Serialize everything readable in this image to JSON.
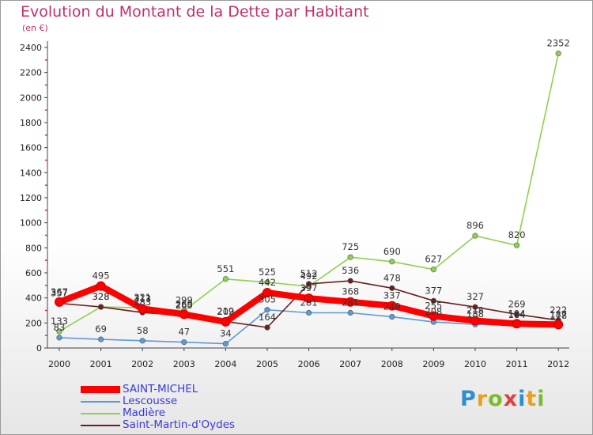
{
  "header": {
    "title": "Evolution du Montant de la Dette par Habitant",
    "unit": "(en €)"
  },
  "logo": {
    "letters": [
      "P",
      "r",
      "o",
      "x",
      "i",
      "t",
      "i"
    ],
    "colors": [
      "#2e8fd0",
      "#e8a020",
      "#7cbc2c",
      "#e04040",
      "#2e8fd0",
      "#e8a020",
      "#7cbc2c"
    ]
  },
  "chart_data": {
    "type": "line",
    "x": [
      "2000",
      "2001",
      "2002",
      "2003",
      "2004",
      "2005",
      "2006",
      "2007",
      "2008",
      "2009",
      "2010",
      "2011",
      "2012"
    ],
    "yticks": [
      0,
      200,
      400,
      600,
      800,
      1000,
      1200,
      1400,
      1600,
      1800,
      2000,
      2200,
      2400
    ],
    "ylim": [
      0,
      2400
    ],
    "grid": false,
    "legend_position": "bottom-left",
    "series": [
      {
        "name": "Lescousse",
        "color": "#5b9bd5",
        "values": [
          83,
          69,
          58,
          47,
          34,
          305,
          281,
          281,
          249,
          208,
          188,
          184,
          178
        ],
        "labels": [
          "83",
          "69",
          "58",
          "47",
          "34",
          "305",
          "281",
          "281",
          "249",
          "208",
          "188",
          "184",
          "178"
        ]
      },
      {
        "name": "Madière",
        "color": "#8fd14f",
        "values": [
          133,
          328,
          321,
          299,
          551,
          525,
          492,
          725,
          690,
          627,
          896,
          820,
          2352
        ],
        "labels": [
          "133",
          "328",
          "321",
          "299",
          "551",
          "525",
          "492",
          "725",
          "690",
          "627",
          "896",
          "820",
          "2352"
        ]
      },
      {
        "name": "Saint-Martin-d'Oydes",
        "color": "#6b1f1f",
        "values": [
          357,
          328,
          283,
          260,
          212,
          164,
          512,
          536,
          478,
          377,
          327,
          269,
          222
        ],
        "labels": [
          "357",
          "328",
          "283",
          "260",
          "212",
          "164",
          "512",
          "536",
          "478",
          "377",
          "327",
          "269",
          "222"
        ]
      },
      {
        "name": "SAINT-MICHEL",
        "color": "#ff0000",
        "values": [
          367,
          495,
          313,
          269,
          209,
          442,
          397,
          368,
          337,
          255,
          218,
          194,
          187
        ],
        "labels": [
          "367",
          "495",
          "313",
          "269",
          "209",
          "442",
          "397",
          "368",
          "337",
          "255",
          "218",
          "194",
          "187"
        ]
      }
    ],
    "legend_order": [
      "SAINT-MICHEL",
      "Lescousse",
      "Madière",
      "Saint-Martin-d'Oydes"
    ]
  }
}
